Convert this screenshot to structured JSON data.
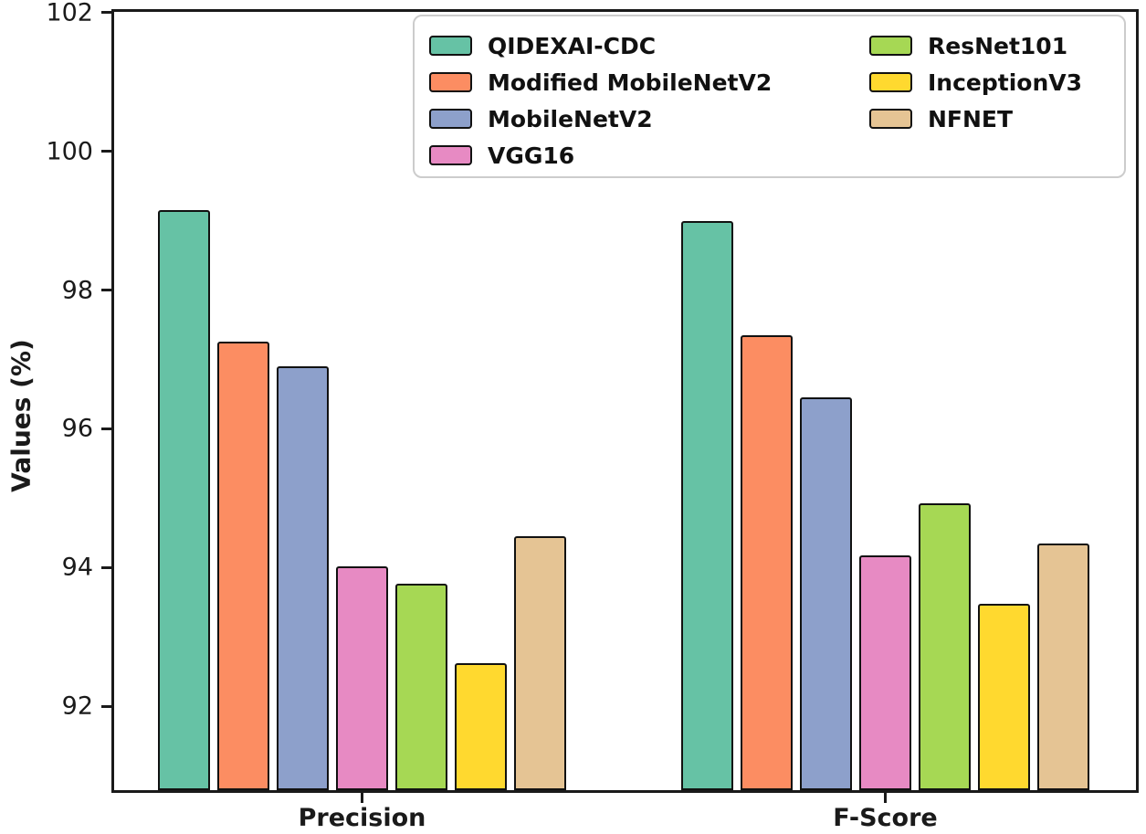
{
  "figure": {
    "background": "#ffffff",
    "axis_color": "#1a1a1a",
    "bar_edge_color": "#111111",
    "legend_border_color": "#cccccc"
  },
  "chart_data": {
    "type": "bar",
    "title": "",
    "xlabel": "",
    "ylabel": "Values (%)",
    "categories": [
      "Precision",
      "F-Score"
    ],
    "series": [
      {
        "name": "QIDEXAI-CDC",
        "color": "#66c2a5",
        "values": [
          99.15,
          99.0
        ]
      },
      {
        "name": "Modified MobileNetV2",
        "color": "#fc8d62",
        "values": [
          97.25,
          97.35
        ]
      },
      {
        "name": "MobileNetV2",
        "color": "#8da0cb",
        "values": [
          96.9,
          96.45
        ]
      },
      {
        "name": "VGG16",
        "color": "#e78ac3",
        "values": [
          94.02,
          94.17
        ]
      },
      {
        "name": "ResNet101",
        "color": "#a6d854",
        "values": [
          93.76,
          94.93
        ]
      },
      {
        "name": "InceptionV3",
        "color": "#ffd92f",
        "values": [
          92.62,
          93.47
        ]
      },
      {
        "name": "NFNET",
        "color": "#e5c494",
        "values": [
          94.45,
          94.35
        ]
      }
    ],
    "yticks": [
      92,
      94,
      96,
      98,
      100,
      102
    ],
    "ylim": [
      90.75,
      102.05
    ],
    "grid": false,
    "legend": {
      "position": "upper center",
      "columns": 2,
      "column_break": 4
    }
  }
}
